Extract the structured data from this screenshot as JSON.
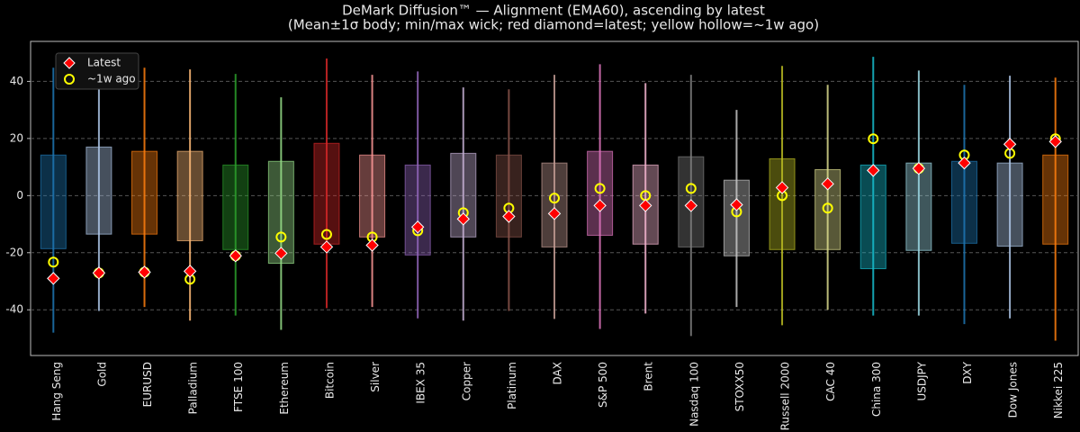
{
  "chart_data": {
    "type": "range-box",
    "title": "DeMark Diffusion™ — Alignment (EMA60), ascending by latest",
    "subtitle": "(Mean±1σ body; min/max wick; red diamond=latest; yellow hollow=~1w ago)",
    "categories": [
      "Hang Seng",
      "Gold",
      "EURUSD",
      "Palladium",
      "FTSE 100",
      "Ethereum",
      "Bitcoin",
      "Silver",
      "IBEX 35",
      "Copper",
      "Platinum",
      "DAX",
      "S&P 500",
      "Brent",
      "Nasdaq 100",
      "STOXX50",
      "Russell 2000",
      "CAC 40",
      "China 300",
      "USDJPY",
      "DXY",
      "Dow Jones",
      "Nikkei 225"
    ],
    "boxes": {
      "high": [
        14.2,
        17,
        15.5,
        15.5,
        10.7,
        12,
        18.3,
        14.2,
        10.7,
        14.8,
        14.2,
        11.4,
        15.5,
        10.7,
        13.6,
        5.4,
        12.9,
        9.1,
        10.7,
        11.4,
        12,
        11.4,
        14.2
      ],
      "low": [
        -18.6,
        -13.5,
        -13.5,
        -15.8,
        -18.9,
        -23.7,
        -17,
        -14.5,
        -20.8,
        -14.5,
        -14.5,
        -18,
        -13.9,
        -17,
        -18,
        -21.1,
        -18.9,
        -18.9,
        -25.6,
        -19.2,
        -16.7,
        -17.7,
        -17
      ],
      "max": [
        44.8,
        43.5,
        44.8,
        44.2,
        42.6,
        34.4,
        48,
        42.3,
        43.5,
        37.9,
        37.2,
        42.3,
        46,
        39.4,
        42.3,
        30,
        45.4,
        38.8,
        48.6,
        43.8,
        38.8,
        42,
        41.3
      ],
      "min": [
        -48,
        -40.4,
        -39,
        -43.8,
        -42,
        -47,
        -39.4,
        -39,
        -43,
        -43.8,
        -40.4,
        -43.2,
        -46.7,
        -41.3,
        -49.2,
        -39,
        -45.4,
        -40,
        -42,
        -42,
        -45,
        -43,
        -50.8
      ],
      "colors": [
        "#1f77b4",
        "#aec7e8",
        "#ff7f0e",
        "#ffbb78",
        "#2ca02c",
        "#98df8a",
        "#d62728",
        "#ff9896",
        "#9467bd",
        "#c5b0d5",
        "#8c564b",
        "#c49c94",
        "#e377c2",
        "#f7b6d2",
        "#7f7f7f",
        "#c7c7c7",
        "#bcbd22",
        "#dbdb8d",
        "#17becf",
        "#9edae5",
        "#1f77b4",
        "#aec7e8",
        "#ff7f0e"
      ]
    },
    "series": [
      {
        "name": "Latest",
        "color": "#ff0000",
        "values": [
          -29,
          -27.1,
          -26.8,
          -26.5,
          -21.1,
          -20.2,
          -18,
          -17.4,
          -11,
          -8.2,
          -7.3,
          -6.3,
          -3.5,
          -3.5,
          -3.5,
          -3.2,
          2.8,
          4.1,
          8.8,
          9.5,
          11.4,
          18,
          18.9
        ]
      },
      {
        "name": "~1w ago",
        "color": "#ffff00",
        "values": [
          -23.3,
          -27.1,
          -26.8,
          -29.3,
          -21.1,
          -14.5,
          -13.6,
          -14.5,
          -12.3,
          -6,
          -4.4,
          -0.9,
          2.5,
          0,
          2.5,
          -5.7,
          0,
          -4.4,
          19.9,
          9.5,
          14.2,
          14.8,
          19.9
        ]
      }
    ],
    "ylim": [
      -56,
      54
    ],
    "yticks": [
      -40,
      -20,
      0,
      20,
      40
    ],
    "grid": true,
    "legend": "upper left"
  }
}
